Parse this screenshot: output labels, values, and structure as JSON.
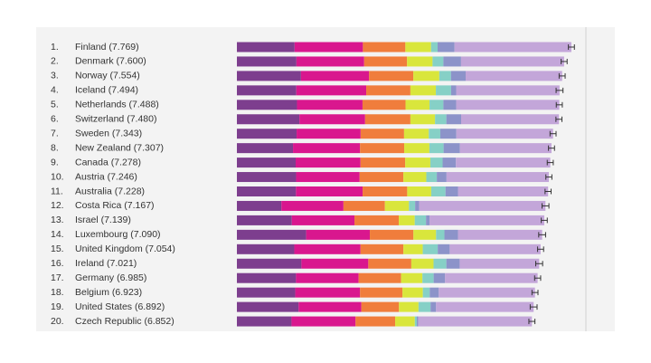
{
  "chart_data": {
    "type": "bar",
    "orientation": "horizontal",
    "stacked": true,
    "ranks": [
      "1.",
      "2.",
      "3.",
      "4.",
      "5.",
      "6.",
      "7.",
      "8.",
      "9.",
      "10.",
      "11.",
      "12.",
      "13.",
      "14.",
      "15.",
      "16.",
      "17.",
      "18.",
      "19.",
      "20."
    ],
    "categories": [
      "Finland (7.769)",
      "Denmark (7.600)",
      "Norway (7.554)",
      "Iceland (7.494)",
      "Netherlands (7.488)",
      "Switzerland (7.480)",
      "Sweden (7.343)",
      "New Zealand (7.307)",
      "Canada (7.278)",
      "Austria (7.246)",
      "Australia (7.228)",
      "Costa Rica (7.167)",
      "Israel (7.139)",
      "Luxembourg (7.090)",
      "United Kingdom (7.054)",
      "Ireland (7.021)",
      "Germany (6.985)",
      "Belgium (6.923)",
      "United States (6.892)",
      "Czech Republic (6.852)"
    ],
    "series": [
      {
        "color": "#7d3e8e",
        "values": [
          1.34,
          1.383,
          1.488,
          1.38,
          1.396,
          1.452,
          1.387,
          1.303,
          1.365,
          1.376,
          1.372,
          1.034,
          1.276,
          1.609,
          1.333,
          1.499,
          1.373,
          1.356,
          1.433,
          1.269
        ]
      },
      {
        "color": "#d9178e",
        "values": [
          1.587,
          1.573,
          1.582,
          1.624,
          1.522,
          1.526,
          1.487,
          1.557,
          1.505,
          1.475,
          1.548,
          1.441,
          1.455,
          1.479,
          1.538,
          1.553,
          1.454,
          1.504,
          1.457,
          1.487
        ]
      },
      {
        "color": "#f07d3c",
        "values": [
          0.986,
          0.996,
          1.028,
          1.026,
          0.999,
          1.052,
          1.009,
          1.026,
          1.039,
          1.016,
          1.036,
          0.963,
          1.029,
          1.012,
          0.996,
          0.999,
          0.987,
          0.986,
          0.874,
          0.92
        ]
      },
      {
        "color": "#d9e63c",
        "values": [
          0.596,
          0.592,
          0.603,
          0.591,
          0.557,
          0.572,
          0.574,
          0.585,
          0.584,
          0.532,
          0.557,
          0.558,
          0.371,
          0.526,
          0.45,
          0.516,
          0.495,
          0.473,
          0.454,
          0.457
        ]
      },
      {
        "color": "#86d0c6",
        "values": [
          0.153,
          0.252,
          0.271,
          0.354,
          0.322,
          0.263,
          0.267,
          0.33,
          0.285,
          0.244,
          0.332,
          0.144,
          0.261,
          0.194,
          0.348,
          0.298,
          0.261,
          0.16,
          0.28,
          0.046
        ]
      },
      {
        "color": "#8c93c9",
        "values": [
          0.393,
          0.41,
          0.341,
          0.118,
          0.298,
          0.343,
          0.373,
          0.38,
          0.308,
          0.226,
          0.29,
          0.093,
          0.082,
          0.316,
          0.278,
          0.31,
          0.265,
          0.21,
          0.128,
          0.036
        ]
      },
      {
        "color": "#c3a6d9",
        "values": [
          2.714,
          2.394,
          2.241,
          2.401,
          2.394,
          2.272,
          2.246,
          2.126,
          2.192,
          2.377,
          2.093,
          2.934,
          2.665,
          1.954,
          2.111,
          1.846,
          2.15,
          2.234,
          2.266,
          2.637
        ]
      }
    ],
    "errors": [
      0.07,
      0.07,
      0.07,
      0.08,
      0.07,
      0.07,
      0.07,
      0.07,
      0.07,
      0.07,
      0.07,
      0.08,
      0.07,
      0.08,
      0.07,
      0.08,
      0.07,
      0.07,
      0.08,
      0.07
    ],
    "xlim": [
      0,
      8.4
    ]
  }
}
